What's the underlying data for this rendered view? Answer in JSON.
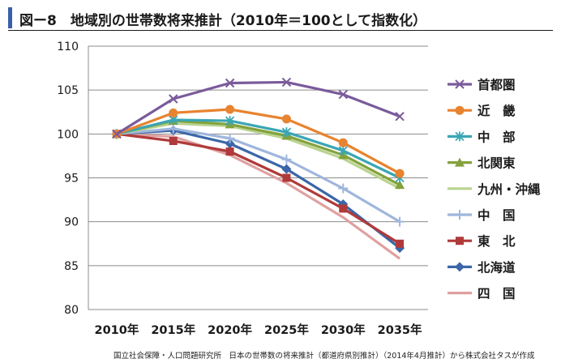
{
  "title": "図ー8　地域別の世帯数将来推計（2010年＝100として指数化）",
  "source": "国立社会保障・人口問題研究所　日本の世帯数の将来推計（都道府県別推計）（2014年4月推計）から株式会社タスが作成",
  "chart_data": {
    "type": "line",
    "categories": [
      "2010年",
      "2015年",
      "2020年",
      "2025年",
      "2030年",
      "2035年"
    ],
    "ylim": [
      80,
      110
    ],
    "yticks": [
      80,
      85,
      90,
      95,
      100,
      105,
      110
    ],
    "grid": "horizontal",
    "legend_position": "right",
    "series": [
      {
        "name": "首都圏",
        "color": "#7a5a9b",
        "marker": "x",
        "values": [
          100,
          104.0,
          105.8,
          105.9,
          104.5,
          102.0
        ]
      },
      {
        "name": "近　畿",
        "color": "#e8832f",
        "marker": "circle",
        "values": [
          100,
          102.4,
          102.8,
          101.7,
          99.0,
          95.5
        ]
      },
      {
        "name": "中　部",
        "color": "#3aa6b4",
        "marker": "asterisk",
        "values": [
          100,
          101.6,
          101.5,
          100.2,
          98.1,
          95.0
        ]
      },
      {
        "name": "北関東",
        "color": "#84a23c",
        "marker": "triangle",
        "values": [
          100,
          101.5,
          101.1,
          99.8,
          97.6,
          94.2
        ]
      },
      {
        "name": "九州・沖縄",
        "color": "#b9d38f",
        "marker": "none",
        "values": [
          100,
          101.2,
          100.9,
          99.5,
          97.2,
          93.8
        ]
      },
      {
        "name": "中　国",
        "color": "#9fb6dc",
        "marker": "plus",
        "values": [
          100,
          100.6,
          99.5,
          97.1,
          93.8,
          90.0
        ]
      },
      {
        "name": "東　北",
        "color": "#b03a3a",
        "marker": "square",
        "values": [
          100,
          99.2,
          98.0,
          95.0,
          91.5,
          87.5
        ]
      },
      {
        "name": "北海道",
        "color": "#3b66a8",
        "marker": "diamond",
        "values": [
          100,
          100.4,
          98.9,
          96.0,
          92.0,
          87.0
        ]
      },
      {
        "name": "四　国",
        "color": "#e0a0a0",
        "marker": "none",
        "values": [
          100,
          99.7,
          97.6,
          94.4,
          90.5,
          85.8
        ]
      }
    ]
  }
}
